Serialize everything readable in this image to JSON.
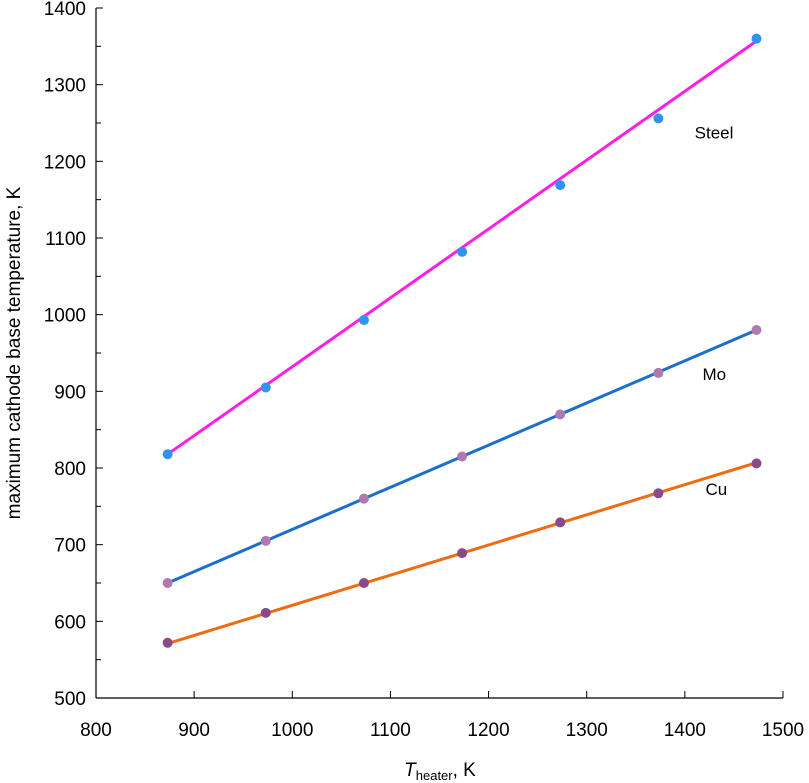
{
  "chart_data": {
    "type": "scatter",
    "title": "",
    "xlabel": {
      "main": "T",
      "subscript": "heater",
      "unit": ", K"
    },
    "ylabel": "maximum cathode base temperature, K",
    "xlim": [
      800,
      1500
    ],
    "ylim": [
      500,
      1400
    ],
    "x_ticks": [
      800,
      900,
      1000,
      1100,
      1200,
      1300,
      1400,
      1500
    ],
    "y_ticks": [
      500,
      600,
      700,
      800,
      900,
      1000,
      1100,
      1200,
      1300,
      1400
    ],
    "grid": false,
    "x": [
      873,
      973,
      1073,
      1173,
      1273,
      1373,
      1473
    ],
    "series": [
      {
        "name": "Steel",
        "values": [
          818,
          905,
          993,
          1082,
          1169,
          1256,
          1360
        ],
        "fit": [
          818,
          1357
        ],
        "point_color": "#2f93f0",
        "line_color": "#ff1ee6"
      },
      {
        "name": "Mo",
        "values": [
          650,
          705,
          760,
          815,
          870,
          924,
          980
        ],
        "fit": [
          650,
          980
        ],
        "point_color": "#b07ab0",
        "line_color": "#1a6fcc"
      },
      {
        "name": "Cu",
        "values": [
          572,
          611,
          650,
          689,
          729,
          767,
          806
        ],
        "fit": [
          571,
          807
        ],
        "point_color": "#8a4a8a",
        "line_color": "#f06a10"
      }
    ]
  }
}
